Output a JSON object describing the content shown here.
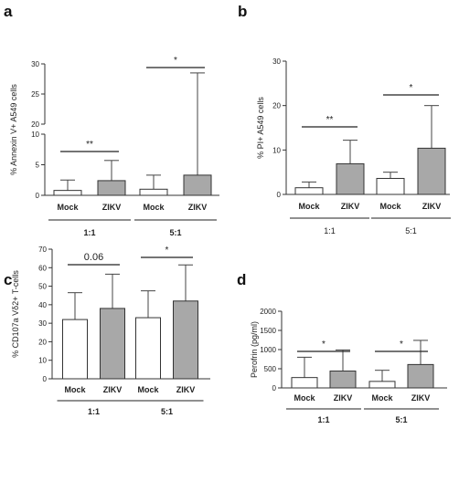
{
  "chart_data": [
    {
      "type": "bar",
      "panel_label": "a",
      "ylabel": "% Annexin V+ A549 cells",
      "y_axis": "broken",
      "y_segments": [
        {
          "range": [
            0,
            10
          ],
          "ticks": [
            0,
            5,
            10
          ]
        },
        {
          "range": [
            20,
            30
          ],
          "ticks": [
            20,
            25,
            30
          ]
        }
      ],
      "group_label_weight": "bold",
      "groups": [
        {
          "label": "1:1",
          "bars": [
            {
              "category": "Mock",
              "fill": "#ffffff",
              "value": 0.8,
              "error_top": 2.5
            },
            {
              "category": "ZIKV",
              "fill": "#a8a8a8",
              "value": 2.4,
              "error_top": 5.7
            }
          ],
          "significance": "**"
        },
        {
          "label": "5:1",
          "bars": [
            {
              "category": "Mock",
              "fill": "#ffffff",
              "value": 1.0,
              "error_top": 3.3
            },
            {
              "category": "ZIKV",
              "fill": "#a8a8a8",
              "value": 3.3,
              "error_top": 28.5
            }
          ],
          "significance": "*"
        }
      ]
    },
    {
      "type": "bar",
      "panel_label": "b",
      "ylabel": "% PI+  A549 cells",
      "ylim": [
        0,
        30
      ],
      "yticks": [
        0,
        10,
        20,
        30
      ],
      "group_label_weight": "normal",
      "groups": [
        {
          "label": "1:1",
          "bars": [
            {
              "category": "Mock",
              "fill": "#ffffff",
              "value": 1.5,
              "error_top": 2.8
            },
            {
              "category": "ZIKV",
              "fill": "#a8a8a8",
              "value": 6.9,
              "error_top": 12.2
            }
          ],
          "significance": "**"
        },
        {
          "label": "5:1",
          "bars": [
            {
              "category": "Mock",
              "fill": "#ffffff",
              "value": 3.6,
              "error_top": 5.0
            },
            {
              "category": "ZIKV",
              "fill": "#a8a8a8",
              "value": 10.4,
              "error_top": 20.0
            }
          ],
          "significance": "*"
        }
      ]
    },
    {
      "type": "bar",
      "panel_label": "c",
      "ylabel": "% CD107a Vδ2+ T-cells",
      "ylim": [
        0,
        70
      ],
      "yticks": [
        0,
        10,
        20,
        30,
        40,
        50,
        60,
        70
      ],
      "group_label_weight": "bold",
      "groups": [
        {
          "label": "1:1",
          "bars": [
            {
              "category": "Mock",
              "fill": "#ffffff",
              "value": 32,
              "error_top": 46.5
            },
            {
              "category": "ZIKV",
              "fill": "#a8a8a8",
              "value": 38,
              "error_top": 56.5
            }
          ],
          "significance": "0.06"
        },
        {
          "label": "5:1",
          "bars": [
            {
              "category": "Mock",
              "fill": "#ffffff",
              "value": 33,
              "error_top": 47.5
            },
            {
              "category": "ZIKV",
              "fill": "#a8a8a8",
              "value": 42,
              "error_top": 61.5
            }
          ],
          "significance": "*"
        }
      ]
    },
    {
      "type": "bar",
      "panel_label": "d",
      "ylabel": "Perofrin (pg/ml)",
      "ylim": [
        0,
        2000
      ],
      "yticks": [
        0,
        500,
        1000,
        1500,
        2000
      ],
      "group_label_weight": "bold",
      "groups": [
        {
          "label": "1:1",
          "bars": [
            {
              "category": "Mock",
              "fill": "#ffffff",
              "value": 270,
              "error_top": 800
            },
            {
              "category": "ZIKV",
              "fill": "#a8a8a8",
              "value": 440,
              "error_top": 990
            }
          ],
          "significance": "*"
        },
        {
          "label": "5:1",
          "bars": [
            {
              "category": "Mock",
              "fill": "#ffffff",
              "value": 170,
              "error_top": 460
            },
            {
              "category": "ZIKV",
              "fill": "#a8a8a8",
              "value": 610,
              "error_top": 1240
            }
          ],
          "significance": "*"
        }
      ]
    }
  ]
}
